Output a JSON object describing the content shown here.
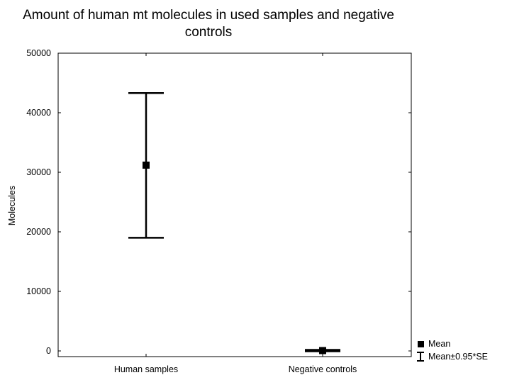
{
  "chart_data": {
    "type": "scatter",
    "title_lines": [
      "Amount of human mt molecules in used samples and negative",
      "controls"
    ],
    "xlabel": "",
    "ylabel": "Molecules",
    "categories": [
      "Human samples",
      "Negative controls"
    ],
    "ylim": [
      -1000,
      50000
    ],
    "yticks": [
      0,
      10000,
      20000,
      30000,
      40000,
      50000
    ],
    "ytick_labels": [
      "0",
      "10000",
      "20000",
      "30000",
      "40000",
      "50000"
    ],
    "grid": false,
    "legend_position": "bottom-right",
    "series": [
      {
        "mean": [
          31200,
          60
        ],
        "lower": [
          19000,
          -60
        ],
        "upper": [
          43300,
          180
        ]
      }
    ],
    "legend": [
      {
        "label": "Mean",
        "symbol": "square"
      },
      {
        "label": "Mean±0.95*SE",
        "symbol": "whisker"
      }
    ]
  }
}
